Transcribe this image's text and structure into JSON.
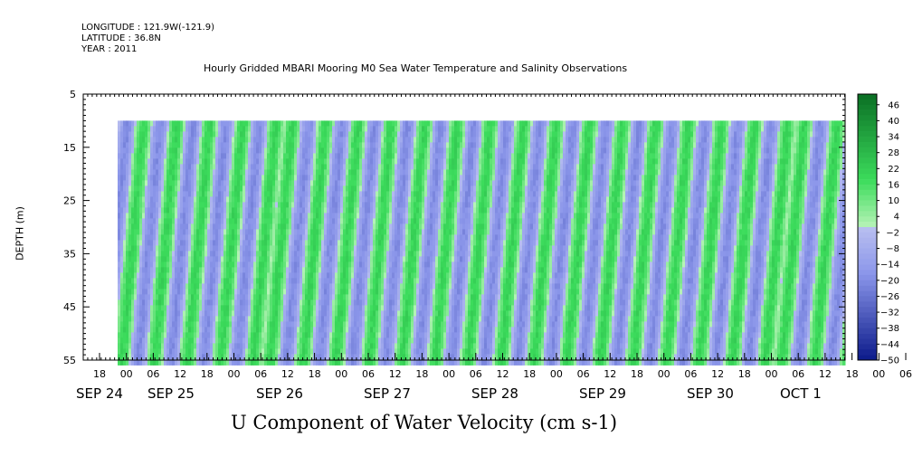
{
  "header": {
    "longitude": "LONGITUDE : 121.9W(-121.9)",
    "latitude": "LATITUDE : 36.8N",
    "year": "YEAR : 2011"
  },
  "chart_data": {
    "type": "heatmap",
    "title": "Hourly Gridded MBARI Mooring M0 Sea Water Temperature and Salinity Observations",
    "ylabel": "DEPTH (m)",
    "xlabel": "U Component of Water Velocity (cm s-1)",
    "y_axis": {
      "range": [
        5,
        55
      ],
      "inverted": true,
      "ticks": [
        "5",
        "15",
        "25",
        "35",
        "45",
        "55"
      ]
    },
    "data_depth_range": [
      10,
      55
    ],
    "x_axis": {
      "hour_ticks": [
        "18",
        "00",
        "06",
        "12",
        "18",
        "00",
        "06",
        "12",
        "18",
        "00",
        "06",
        "12",
        "18",
        "00",
        "06",
        "12",
        "18",
        "00",
        "06",
        "12",
        "18",
        "00",
        "06",
        "12",
        "18",
        "00",
        "06",
        "12",
        "18",
        "00",
        "06",
        "12"
      ],
      "day_labels": [
        "SEP 24",
        "SEP 25",
        "SEP 26",
        "SEP 27",
        "SEP 28",
        "SEP 29",
        "SEP 30",
        "OCT  1"
      ]
    },
    "colorbar": {
      "labels": [
        "46",
        "40",
        "34",
        "28",
        "22",
        "16",
        "10",
        "4",
        "−2",
        "−8",
        "−14",
        "−20",
        "−26",
        "−32",
        "−38",
        "−44",
        "−50"
      ],
      "min": -50,
      "max": 50,
      "step": 2
    },
    "velocity_phase_sign": [
      -1,
      1,
      -1,
      1,
      -1,
      1,
      -1,
      1,
      -1,
      1,
      1,
      -1,
      1,
      -1,
      1,
      -1,
      1,
      -1,
      1,
      -1,
      1,
      -1,
      1,
      -1,
      1,
      -1,
      1,
      -1,
      1,
      -1,
      1,
      -1,
      1,
      -1,
      1,
      -1,
      1,
      -1,
      1,
      -1,
      1,
      1,
      -1,
      1
    ],
    "colors": {
      "pos_low": "#b7f3b7",
      "pos_mid": "#3cdc5c",
      "pos_high": "#0a6f24",
      "neg_low": "#b9bff0",
      "neg_mid": "#8b96ea",
      "neg_high": "#0b1a8a"
    }
  }
}
